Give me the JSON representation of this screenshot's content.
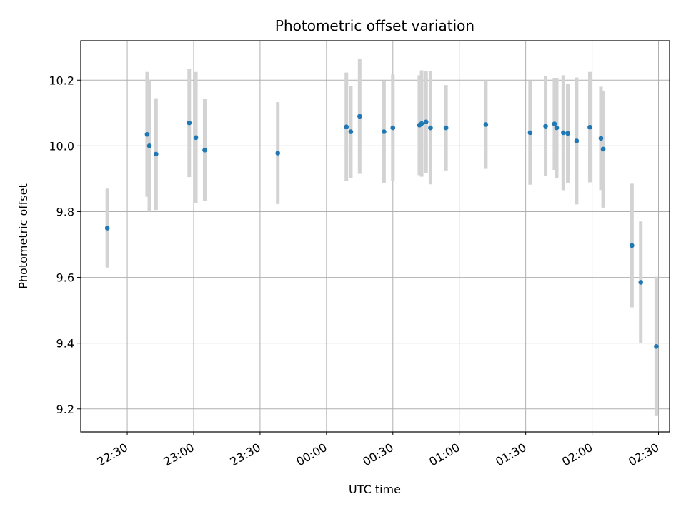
{
  "chart_data": {
    "type": "scatter",
    "title": "Photometric offset variation",
    "xlabel": "UTC time",
    "ylabel": "Photometric offset",
    "grid": true,
    "x_axis": {
      "unit": "UTC time",
      "range": [
        "22:09",
        "02:35"
      ],
      "ticks": [
        "22:30",
        "23:00",
        "23:30",
        "00:00",
        "00:30",
        "01:00",
        "01:30",
        "02:00",
        "02:30"
      ]
    },
    "y_axis": {
      "range": [
        9.13,
        10.32
      ],
      "ticks": [
        "9.2",
        "9.4",
        "9.6",
        "9.8",
        "10.0",
        "10.2"
      ]
    },
    "point_color": "#1f77b4",
    "errorbar_color": "#d3d3d3",
    "points": [
      {
        "x": "22:21",
        "y": 9.75,
        "err": 0.12
      },
      {
        "x": "22:39",
        "y": 10.035,
        "err": 0.19
      },
      {
        "x": "22:40",
        "y": 10.0,
        "err": 0.2
      },
      {
        "x": "22:43",
        "y": 9.975,
        "err": 0.17
      },
      {
        "x": "22:58",
        "y": 10.07,
        "err": 0.165
      },
      {
        "x": "23:01",
        "y": 10.025,
        "err": 0.2
      },
      {
        "x": "23:05",
        "y": 9.987,
        "err": 0.155
      },
      {
        "x": "23:38",
        "y": 9.978,
        "err": 0.155
      },
      {
        "x": "00:09",
        "y": 10.058,
        "err": 0.165
      },
      {
        "x": "00:11",
        "y": 10.043,
        "err": 0.14
      },
      {
        "x": "00:15",
        "y": 10.09,
        "err": 0.175
      },
      {
        "x": "00:26",
        "y": 10.043,
        "err": 0.155
      },
      {
        "x": "00:30",
        "y": 10.055,
        "err": 0.162
      },
      {
        "x": "00:42",
        "y": 10.063,
        "err": 0.152
      },
      {
        "x": "00:43",
        "y": 10.068,
        "err": 0.162
      },
      {
        "x": "00:45",
        "y": 10.073,
        "err": 0.155
      },
      {
        "x": "00:47",
        "y": 10.055,
        "err": 0.172
      },
      {
        "x": "00:54",
        "y": 10.055,
        "err": 0.13
      },
      {
        "x": "01:12",
        "y": 10.065,
        "err": 0.135
      },
      {
        "x": "01:32",
        "y": 10.04,
        "err": 0.158
      },
      {
        "x": "01:39",
        "y": 10.06,
        "err": 0.152
      },
      {
        "x": "01:43",
        "y": 10.067,
        "err": 0.14
      },
      {
        "x": "01:44",
        "y": 10.055,
        "err": 0.152
      },
      {
        "x": "01:47",
        "y": 10.04,
        "err": 0.175
      },
      {
        "x": "01:49",
        "y": 10.038,
        "err": 0.15
      },
      {
        "x": "01:53",
        "y": 10.015,
        "err": 0.193
      },
      {
        "x": "01:59",
        "y": 10.057,
        "err": 0.168
      },
      {
        "x": "02:04",
        "y": 10.023,
        "err": 0.157
      },
      {
        "x": "02:05",
        "y": 9.99,
        "err": 0.178
      },
      {
        "x": "02:18",
        "y": 9.697,
        "err": 0.188
      },
      {
        "x": "02:22",
        "y": 9.585,
        "err": 0.185
      },
      {
        "x": "02:29",
        "y": 9.39,
        "err": 0.212
      }
    ]
  }
}
